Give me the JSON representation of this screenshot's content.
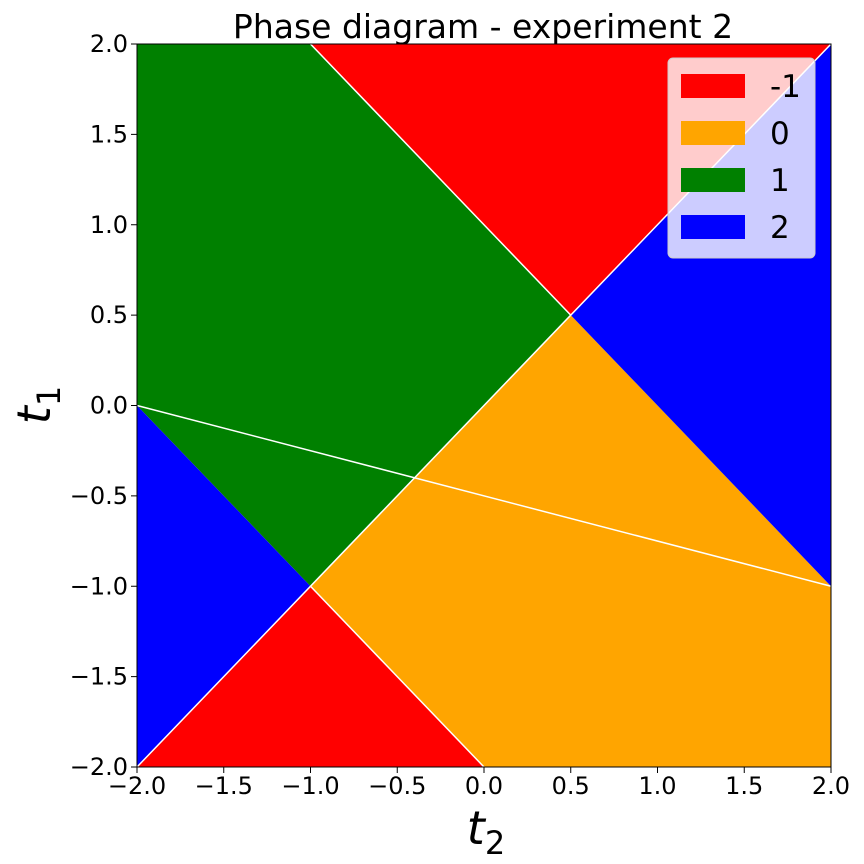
{
  "chart_data": {
    "type": "area",
    "title": "Phase diagram - experiment 2",
    "xlabel": {
      "base": "t",
      "sub": "2"
    },
    "ylabel": {
      "base": "t",
      "sub": "1"
    },
    "xlim": [
      -2.0,
      2.0
    ],
    "ylim": [
      -2.0,
      2.0
    ],
    "xticks": [
      {
        "value": -2.0,
        "label": "−2.0"
      },
      {
        "value": -1.5,
        "label": "−1.5"
      },
      {
        "value": -1.0,
        "label": "−1.0"
      },
      {
        "value": -0.5,
        "label": "−0.5"
      },
      {
        "value": 0.0,
        "label": "0.0"
      },
      {
        "value": 0.5,
        "label": "0.5"
      },
      {
        "value": 1.0,
        "label": "1.0"
      },
      {
        "value": 1.5,
        "label": "1.5"
      },
      {
        "value": 2.0,
        "label": "2.0"
      }
    ],
    "yticks": [
      {
        "value": -2.0,
        "label": "−2.0"
      },
      {
        "value": -1.5,
        "label": "−1.5"
      },
      {
        "value": -1.0,
        "label": "−1.0"
      },
      {
        "value": -0.5,
        "label": "−0.5"
      },
      {
        "value": 0.0,
        "label": "0.0"
      },
      {
        "value": 0.5,
        "label": "0.5"
      },
      {
        "value": 1.0,
        "label": "1.0"
      },
      {
        "value": 1.5,
        "label": "1.5"
      },
      {
        "value": 2.0,
        "label": "2.0"
      }
    ],
    "grid": false,
    "legend": {
      "position": "top-right"
    },
    "phases": [
      {
        "id": "red-top",
        "label": "-1",
        "color": "#ff0000",
        "points": [
          [
            -1.0,
            2.0
          ],
          [
            2.0,
            2.0
          ],
          [
            0.5,
            0.5
          ]
        ]
      },
      {
        "id": "red-bottom",
        "label": "-1",
        "color": "#ff0000",
        "points": [
          [
            -2.0,
            -2.0
          ],
          [
            0.0,
            -2.0
          ],
          [
            -1.0,
            -1.0
          ]
        ]
      },
      {
        "id": "orange",
        "label": "0",
        "color": "#ffa500",
        "points": [
          [
            0.5,
            0.5
          ],
          [
            -1.0,
            -1.0
          ],
          [
            0.0,
            -2.0
          ],
          [
            2.0,
            -2.0
          ],
          [
            2.0,
            -1.0
          ]
        ]
      },
      {
        "id": "green",
        "label": "1",
        "color": "#008000",
        "points": [
          [
            -2.0,
            2.0
          ],
          [
            -1.0,
            2.0
          ],
          [
            0.5,
            0.5
          ],
          [
            -1.0,
            -1.0
          ],
          [
            -2.0,
            0.0
          ]
        ]
      },
      {
        "id": "blue-right",
        "label": "2",
        "color": "#0000ff",
        "points": [
          [
            2.0,
            2.0
          ],
          [
            2.0,
            -1.0
          ],
          [
            0.5,
            0.5
          ]
        ]
      },
      {
        "id": "blue-left",
        "label": "2",
        "color": "#0000ff",
        "points": [
          [
            -2.0,
            0.0
          ],
          [
            -1.0,
            -1.0
          ],
          [
            -2.0,
            -2.0
          ]
        ]
      }
    ],
    "boundaries": [
      [
        [
          -1.0,
          2.0
        ],
        [
          0.5,
          0.5
        ]
      ],
      [
        [
          2.0,
          2.0
        ],
        [
          -2.0,
          -2.0
        ]
      ],
      [
        [
          -2.0,
          0.0
        ],
        [
          2.0,
          -1.0
        ]
      ],
      [
        [
          -1.0,
          -1.0
        ],
        [
          0.0,
          -2.0
        ]
      ]
    ],
    "legend_entries": [
      {
        "label": "-1",
        "color": "#ff0000"
      },
      {
        "label": "0",
        "color": "#ffa500"
      },
      {
        "label": "1",
        "color": "#008000"
      },
      {
        "label": "2",
        "color": "#0000ff"
      }
    ]
  }
}
